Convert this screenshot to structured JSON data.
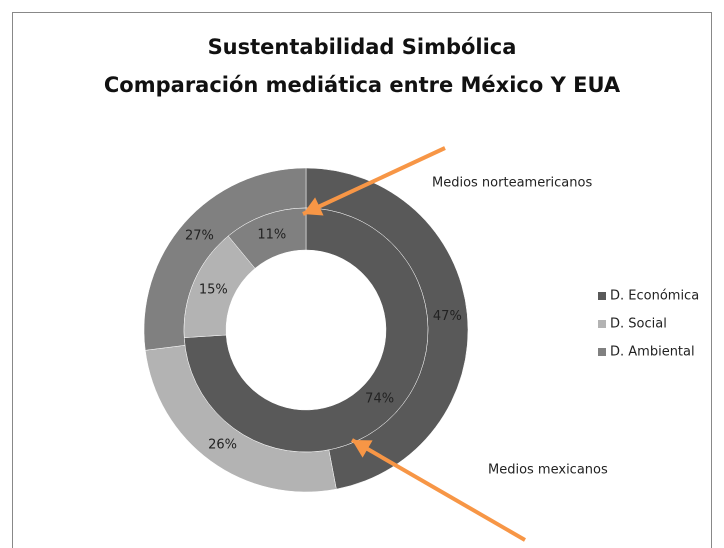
{
  "chart_data": {
    "type": "donut",
    "title": "Sustentabilidad Simbólica",
    "subtitle": "Comparación mediática entre México Y EUA",
    "categories": [
      "D. Económica",
      "D. Social",
      "D. Ambiental"
    ],
    "colors": [
      "#595959",
      "#b3b3b3",
      "#808080"
    ],
    "series": [
      {
        "values": [
          47,
          26,
          27
        ],
        "value_labels": [
          "47%",
          "26%",
          "27%"
        ]
      },
      {
        "values": [
          74,
          15,
          11
        ],
        "value_labels": [
          "74%",
          "15%",
          "11%"
        ]
      }
    ],
    "annotations": [
      "Medios norteamericanos",
      "Medios mexicanos"
    ],
    "legend": "right"
  }
}
